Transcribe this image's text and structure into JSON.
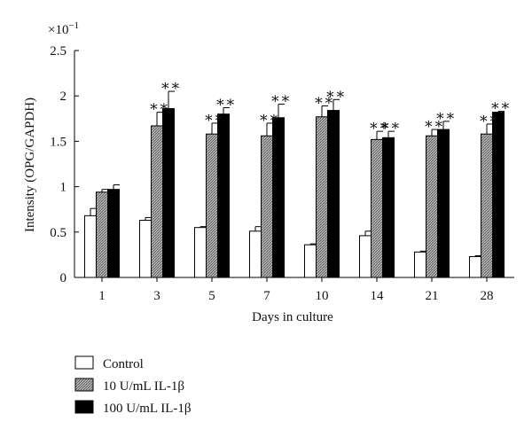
{
  "chart_data": {
    "type": "bar",
    "categories": [
      "1",
      "3",
      "5",
      "7",
      "10",
      "14",
      "21",
      "28"
    ],
    "series": [
      {
        "name": "Control",
        "values": [
          0.68,
          0.63,
          0.55,
          0.51,
          0.36,
          0.46,
          0.28,
          0.23
        ],
        "errors": [
          0.08,
          0.03,
          0.01,
          0.05,
          0.01,
          0.05,
          0.01,
          0.01
        ],
        "fill": "#ffffff",
        "pattern": "none"
      },
      {
        "name": "10 U/mL IL-1β",
        "values": [
          0.94,
          1.67,
          1.58,
          1.56,
          1.77,
          1.52,
          1.56,
          1.58
        ],
        "errors": [
          0.03,
          0.15,
          0.12,
          0.14,
          0.12,
          0.09,
          0.07,
          0.11
        ],
        "fill": "#9a9a9a",
        "pattern": "hatched"
      },
      {
        "name": "100 U/mL IL-1β",
        "values": [
          0.97,
          1.86,
          1.8,
          1.76,
          1.84,
          1.54,
          1.63,
          1.82
        ],
        "errors": [
          0.05,
          0.19,
          0.07,
          0.15,
          0.12,
          0.07,
          0.09,
          0.01
        ],
        "fill": "#000000",
        "pattern": "none"
      }
    ],
    "significance": {
      "label": "∗∗",
      "markers": [
        {
          "category": "3",
          "series": [
            1,
            2
          ]
        },
        {
          "category": "5",
          "series": [
            1,
            2
          ]
        },
        {
          "category": "7",
          "series": [
            1,
            2
          ]
        },
        {
          "category": "10",
          "series": [
            1,
            2
          ]
        },
        {
          "category": "14",
          "series": [
            1,
            2
          ]
        },
        {
          "category": "21",
          "series": [
            1,
            2
          ]
        },
        {
          "category": "28",
          "series": [
            1,
            2
          ]
        }
      ]
    },
    "xlabel": "Days in culture",
    "ylabel": "Intensity (OPG/GAPDH)",
    "y_multiplier": "×10",
    "y_multiplier_exp": "−1",
    "ylim": [
      0,
      2.5
    ],
    "yticks": [
      "0",
      "0.5",
      "1",
      "1.5",
      "2",
      "2.5"
    ],
    "ytick_values": [
      0,
      0.5,
      1,
      1.5,
      2,
      2.5
    ],
    "grid": false,
    "legend_position": "bottom-left"
  }
}
